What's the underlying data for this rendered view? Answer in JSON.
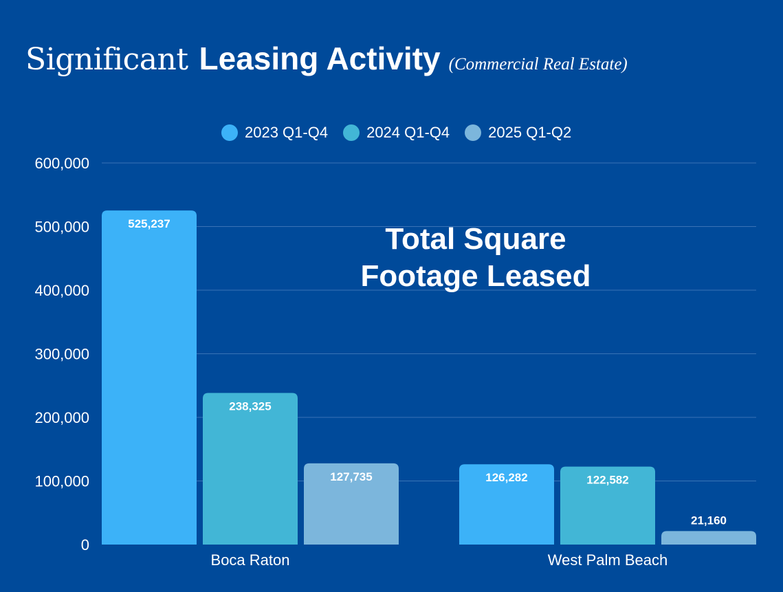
{
  "title": {
    "light": "Significant",
    "bold": "Leasing Activity",
    "note": "(Commercial Real Estate)"
  },
  "annotation": [
    "Total Square",
    "Footage Leased"
  ],
  "colors": {
    "background": "#004a9a",
    "grid": "#3a73b6",
    "text": "#ffffff",
    "series": [
      "#3cb2f8",
      "#42b6d6",
      "#7cb6dc"
    ]
  },
  "chart_data": {
    "type": "bar",
    "categories": [
      "Boca Raton",
      "West Palm Beach"
    ],
    "series": [
      {
        "name": "2023 Q1-Q4",
        "values": [
          525237,
          126282
        ],
        "labels": [
          "525,237",
          "126,282"
        ]
      },
      {
        "name": "2024 Q1-Q4",
        "values": [
          238325,
          122582
        ],
        "labels": [
          "238,325",
          "122,582"
        ]
      },
      {
        "name": "2025 Q1-Q2",
        "values": [
          127735,
          21160
        ],
        "labels": [
          "127,735",
          "21,160"
        ]
      }
    ],
    "ylim": [
      0,
      600000
    ],
    "yticks": [
      0,
      100000,
      200000,
      300000,
      400000,
      500000,
      600000
    ],
    "ytick_labels": [
      "0",
      "100,000",
      "200,000",
      "300,000",
      "400,000",
      "500,000",
      "600,000"
    ],
    "grid": true,
    "legend_position": "top"
  }
}
